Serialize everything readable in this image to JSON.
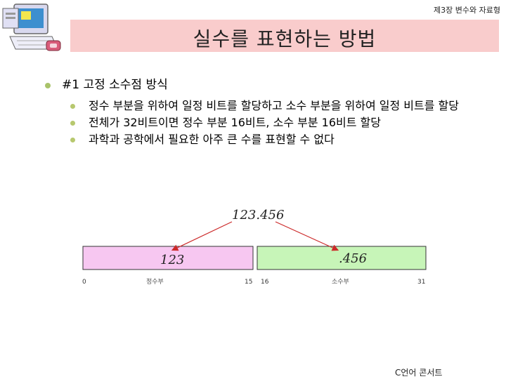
{
  "header": {
    "chapter": "제3장 변수와 자료형"
  },
  "title": "실수를 표현하는 방법",
  "bullets": {
    "main": "#1 고정 소수점 방식",
    "sub": [
      "정수 부분을 위하여 일정 비트를 할당하고 소수 부분을 위하여 일정 비트를 할당",
      "전체가 32비트이면 정수 부분 16비트, 소수 부분 16비트 할당",
      "과학과 공학에서 필요한 아주 큰 수를 표현할 수 없다"
    ]
  },
  "diagram": {
    "number": "123.456",
    "integer_part": "123",
    "fraction_part": ".456",
    "integer_label": "정수부",
    "fraction_label": "소수부",
    "bit_labels": [
      "0",
      "15",
      "16",
      "31"
    ],
    "colors": {
      "integer_box": "#f7c7f1",
      "fraction_box": "#c7f5b8",
      "arrow": "#cc2a2a",
      "bullet": "#b7c86e"
    }
  },
  "footer": "C언어 콘서트"
}
